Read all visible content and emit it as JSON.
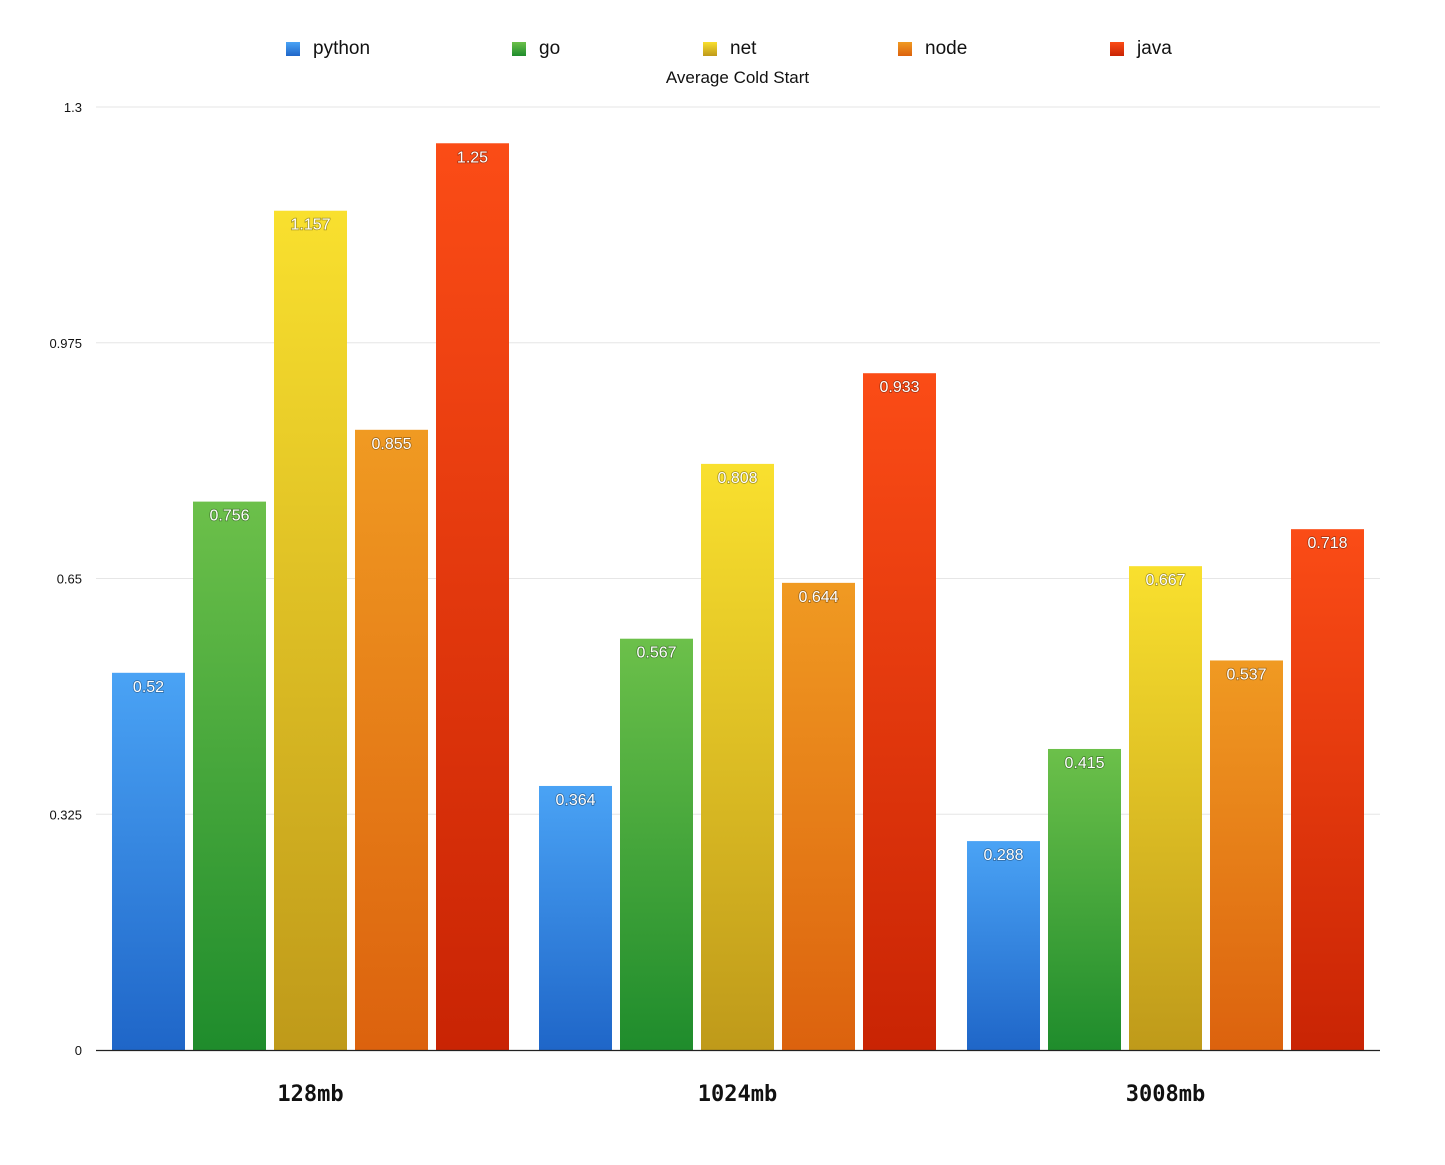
{
  "chart_data": {
    "type": "bar",
    "title": "Average Cold Start",
    "xlabel": "",
    "ylabel": "",
    "ylim": [
      0,
      1.3
    ],
    "yticks": [
      "0",
      "0.325",
      "0.65",
      "0.975",
      "1.3"
    ],
    "grid": true,
    "legend_position": "top",
    "categories": [
      "128mb",
      "1024mb",
      "3008mb"
    ],
    "series": [
      {
        "name": "python",
        "values": [
          0.52,
          0.364,
          0.288
        ],
        "labels": [
          "0.52",
          "0.364",
          "0.288"
        ],
        "color_top": "#4aa3f5",
        "color_bottom": "#1f66c8"
      },
      {
        "name": "go",
        "values": [
          0.756,
          0.567,
          0.415
        ],
        "labels": [
          "0.756",
          "0.567",
          "0.415"
        ],
        "color_top": "#6cc04a",
        "color_bottom": "#1f8c2c"
      },
      {
        "name": "net",
        "values": [
          1.157,
          0.808,
          0.667
        ],
        "labels": [
          "1.157",
          "0.808",
          "0.667"
        ],
        "color_top": "#f9e02e",
        "color_bottom": "#bf9a1a"
      },
      {
        "name": "node",
        "values": [
          0.855,
          0.644,
          0.537
        ],
        "labels": [
          "0.855",
          "0.644",
          "0.537"
        ],
        "color_top": "#f09a22",
        "color_bottom": "#dc620e"
      },
      {
        "name": "java",
        "values": [
          1.25,
          0.933,
          0.718
        ],
        "labels": [
          "1.25",
          "0.933",
          "0.718"
        ],
        "color_top": "#fb4c16",
        "color_bottom": "#c92404"
      }
    ]
  }
}
